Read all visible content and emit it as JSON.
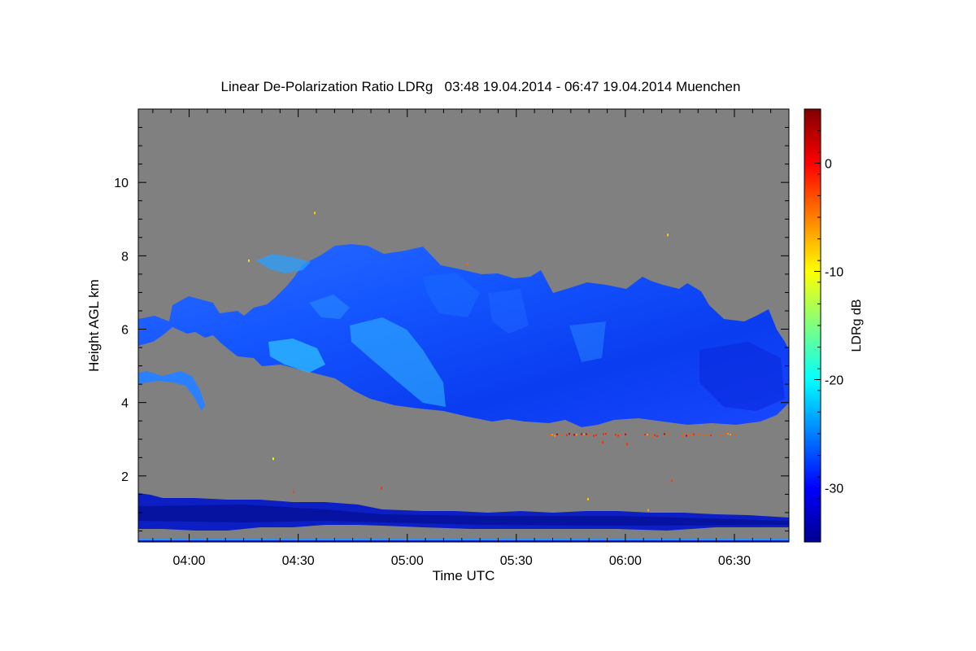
{
  "chart_data": {
    "type": "heatmap",
    "title": "Linear De-Polarization Ratio LDRg   03:48 19.04.2014 - 06:47 19.04.2014 Muenchen",
    "xlabel": "Time UTC",
    "ylabel": "Height AGL km",
    "x_tick_labels": [
      "04:00",
      "04:30",
      "05:00",
      "05:30",
      "06:00",
      "06:30"
    ],
    "x_tick_minutes": [
      240,
      270,
      300,
      330,
      360,
      390
    ],
    "xlim_minutes": [
      226,
      405
    ],
    "y_ticks": [
      2,
      4,
      6,
      8,
      10
    ],
    "ylim": [
      0.2,
      12
    ],
    "colorbar": {
      "label": "LDRg dB",
      "ticks": [
        0,
        -10,
        -20,
        -30
      ],
      "range": [
        -35,
        5
      ],
      "colormap": "jet"
    },
    "background_color": "#808080",
    "features": [
      {
        "name": "cirrus cloud",
        "time_range": [
          "03:48",
          "06:47"
        ],
        "base_km": 3.4,
        "top_km": 8.3,
        "typical_ldr_db": -28
      },
      {
        "name": "boundary layer",
        "time_range": [
          "03:48",
          "06:47"
        ],
        "base_km": 0.4,
        "top_km": 1.5,
        "typical_ldr_db": -33
      },
      {
        "name": "depolarizing particles",
        "time_range": [
          "05:45",
          "06:30"
        ],
        "height_km": 3.15,
        "typical_ldr_db": -3
      }
    ]
  }
}
